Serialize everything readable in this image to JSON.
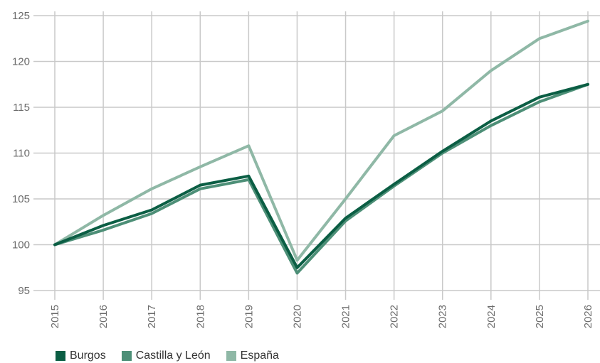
{
  "chart_data": {
    "type": "line",
    "title": "",
    "xlabel": "",
    "ylabel": "",
    "x": [
      "2015",
      "2016",
      "2017",
      "2018",
      "2019",
      "2020",
      "2021",
      "2022",
      "2023",
      "2024",
      "2025",
      "2026"
    ],
    "ylim": [
      95,
      125
    ],
    "yticks": [
      95,
      100,
      105,
      110,
      115,
      120,
      125
    ],
    "grid": true,
    "legend_position": "bottom-left",
    "series": [
      {
        "name": "Burgos",
        "color": "#0b5e44",
        "values": [
          100,
          102.1,
          103.8,
          106.5,
          107.5,
          97.5,
          102.9,
          106.6,
          110.2,
          113.5,
          116.1,
          117.5
        ]
      },
      {
        "name": "Castilla y León",
        "color": "#4d8f77",
        "values": [
          100,
          101.6,
          103.4,
          106.1,
          107.1,
          96.9,
          102.6,
          106.4,
          110.0,
          113.0,
          115.6,
          117.5
        ]
      },
      {
        "name": "España",
        "color": "#8fb8a6",
        "values": [
          100,
          103.2,
          106.1,
          108.5,
          110.8,
          98.3,
          105.0,
          111.9,
          114.6,
          119.0,
          122.5,
          124.4
        ]
      }
    ]
  }
}
